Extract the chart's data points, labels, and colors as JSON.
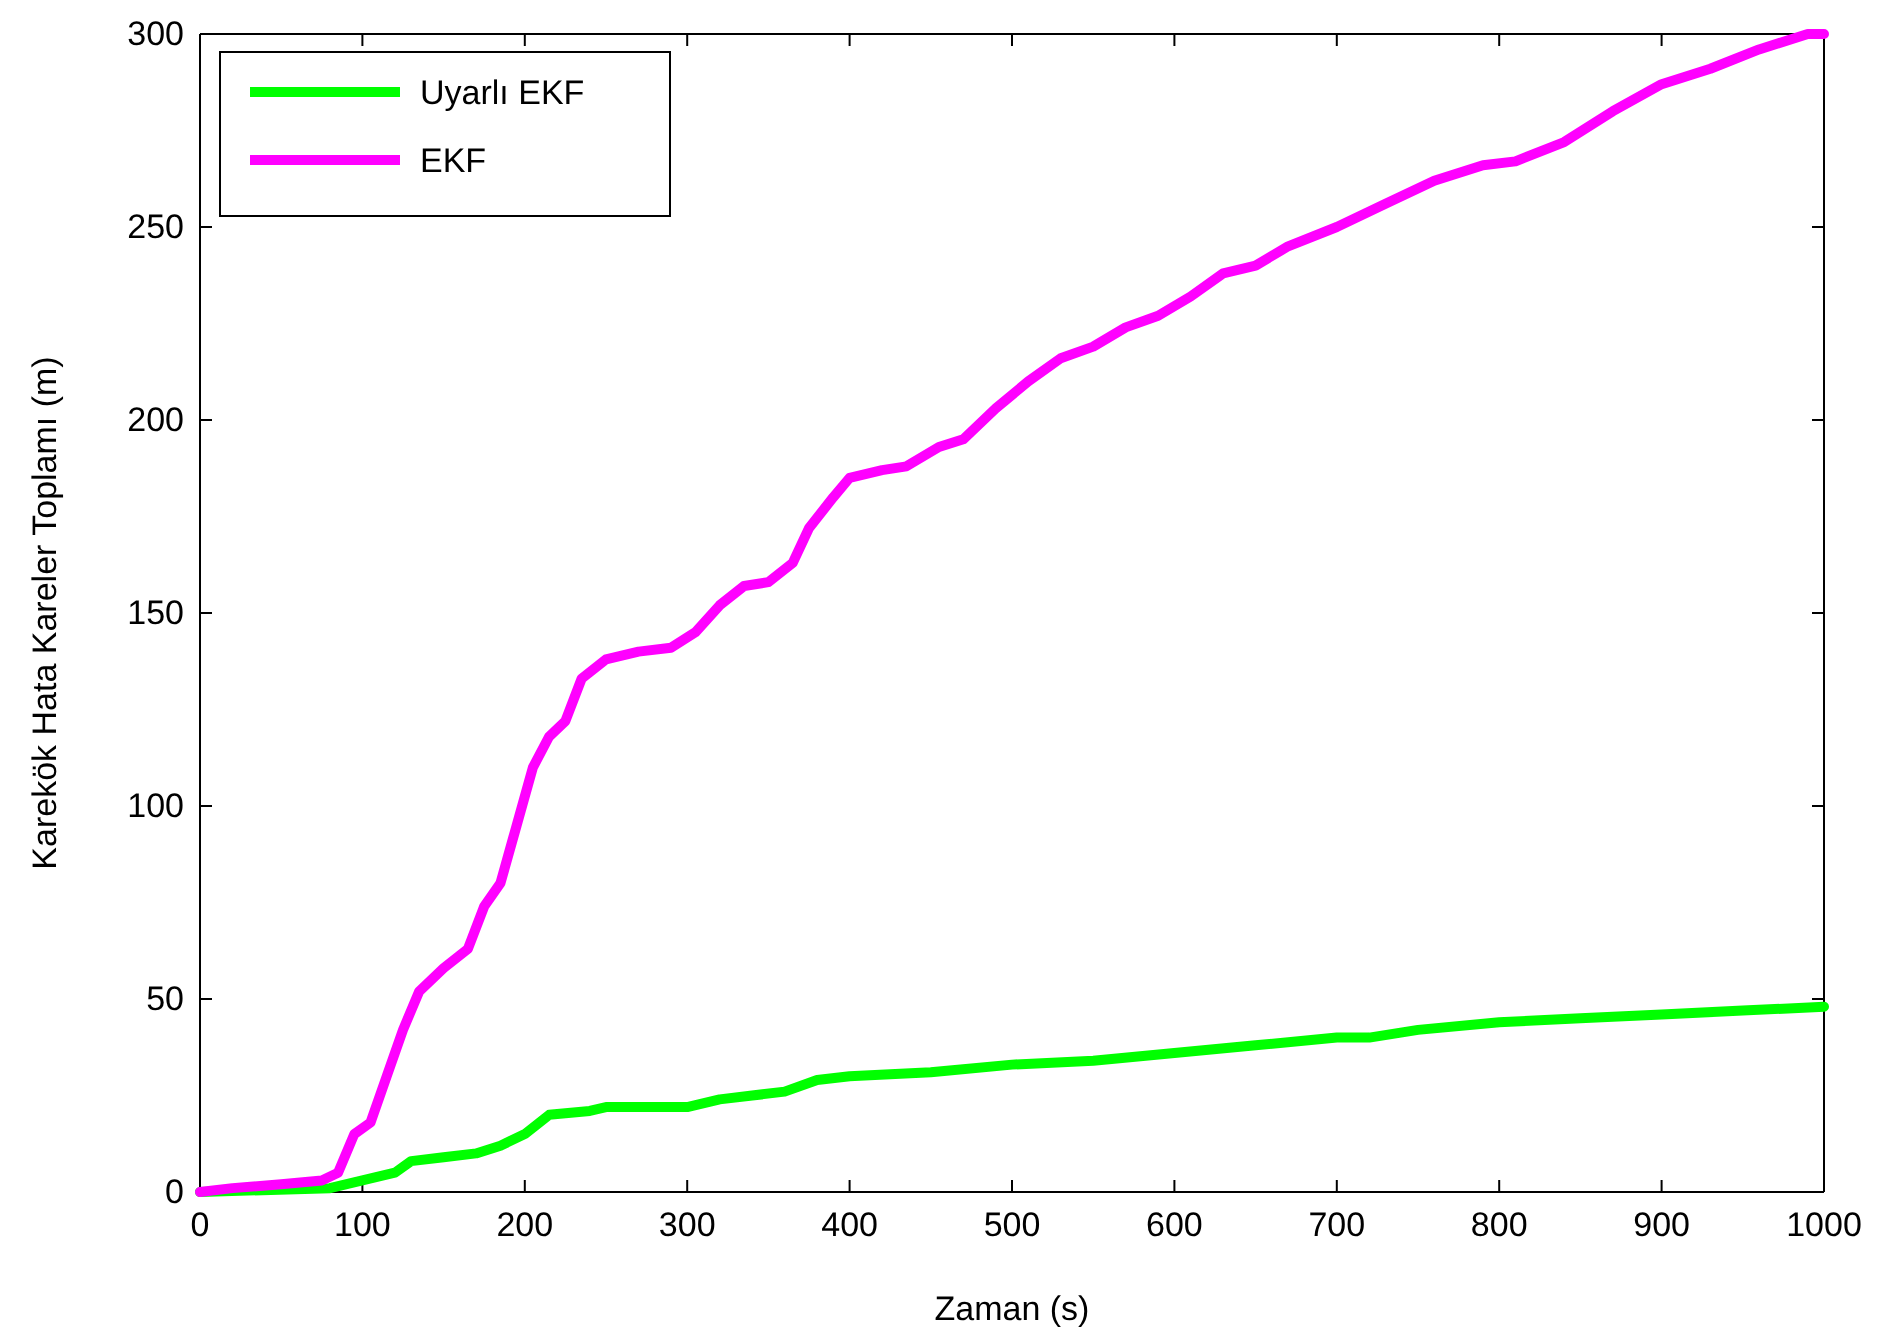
{
  "chart_data": {
    "type": "line",
    "xlabel": "Zaman (s)",
    "ylabel": "Karekök Hata Kareler Toplamı (m)",
    "xlim": [
      0,
      1000
    ],
    "ylim": [
      0,
      300
    ],
    "xticks": [
      0,
      100,
      200,
      300,
      400,
      500,
      600,
      700,
      800,
      900,
      1000
    ],
    "yticks": [
      0,
      50,
      100,
      150,
      200,
      250,
      300
    ],
    "grid": false,
    "legend": "top left",
    "line_style": "solid",
    "marker": "none",
    "series": [
      {
        "name": "Uyarlı EKF",
        "color": "#00ff00",
        "x": [
          0,
          80,
          100,
          120,
          130,
          150,
          170,
          185,
          200,
          215,
          240,
          250,
          300,
          320,
          340,
          360,
          380,
          400,
          450,
          500,
          550,
          600,
          650,
          700,
          720,
          750,
          800,
          850,
          900,
          950,
          1000
        ],
        "values": [
          0,
          1,
          3,
          5,
          8,
          9,
          10,
          12,
          15,
          20,
          21,
          22,
          22,
          24,
          25,
          26,
          29,
          30,
          31,
          33,
          34,
          36,
          38,
          40,
          40,
          42,
          44,
          45,
          46,
          47,
          48
        ]
      },
      {
        "name": "EKF",
        "color": "#ff00ff",
        "x": [
          0,
          20,
          50,
          75,
          85,
          95,
          105,
          115,
          125,
          135,
          150,
          165,
          175,
          185,
          195,
          205,
          215,
          225,
          235,
          250,
          270,
          290,
          305,
          320,
          335,
          350,
          365,
          375,
          390,
          400,
          420,
          435,
          455,
          470,
          490,
          510,
          530,
          550,
          570,
          590,
          610,
          630,
          650,
          670,
          700,
          730,
          760,
          790,
          810,
          840,
          870,
          900,
          930,
          960,
          990,
          1000
        ],
        "values": [
          0,
          1,
          2,
          3,
          5,
          15,
          18,
          30,
          42,
          52,
          58,
          63,
          74,
          80,
          95,
          110,
          118,
          122,
          133,
          138,
          140,
          141,
          145,
          152,
          157,
          158,
          163,
          172,
          180,
          185,
          187,
          188,
          193,
          195,
          203,
          210,
          216,
          219,
          224,
          227,
          232,
          238,
          240,
          245,
          250,
          256,
          262,
          266,
          267,
          272,
          280,
          287,
          291,
          296,
          300,
          300
        ]
      }
    ]
  }
}
